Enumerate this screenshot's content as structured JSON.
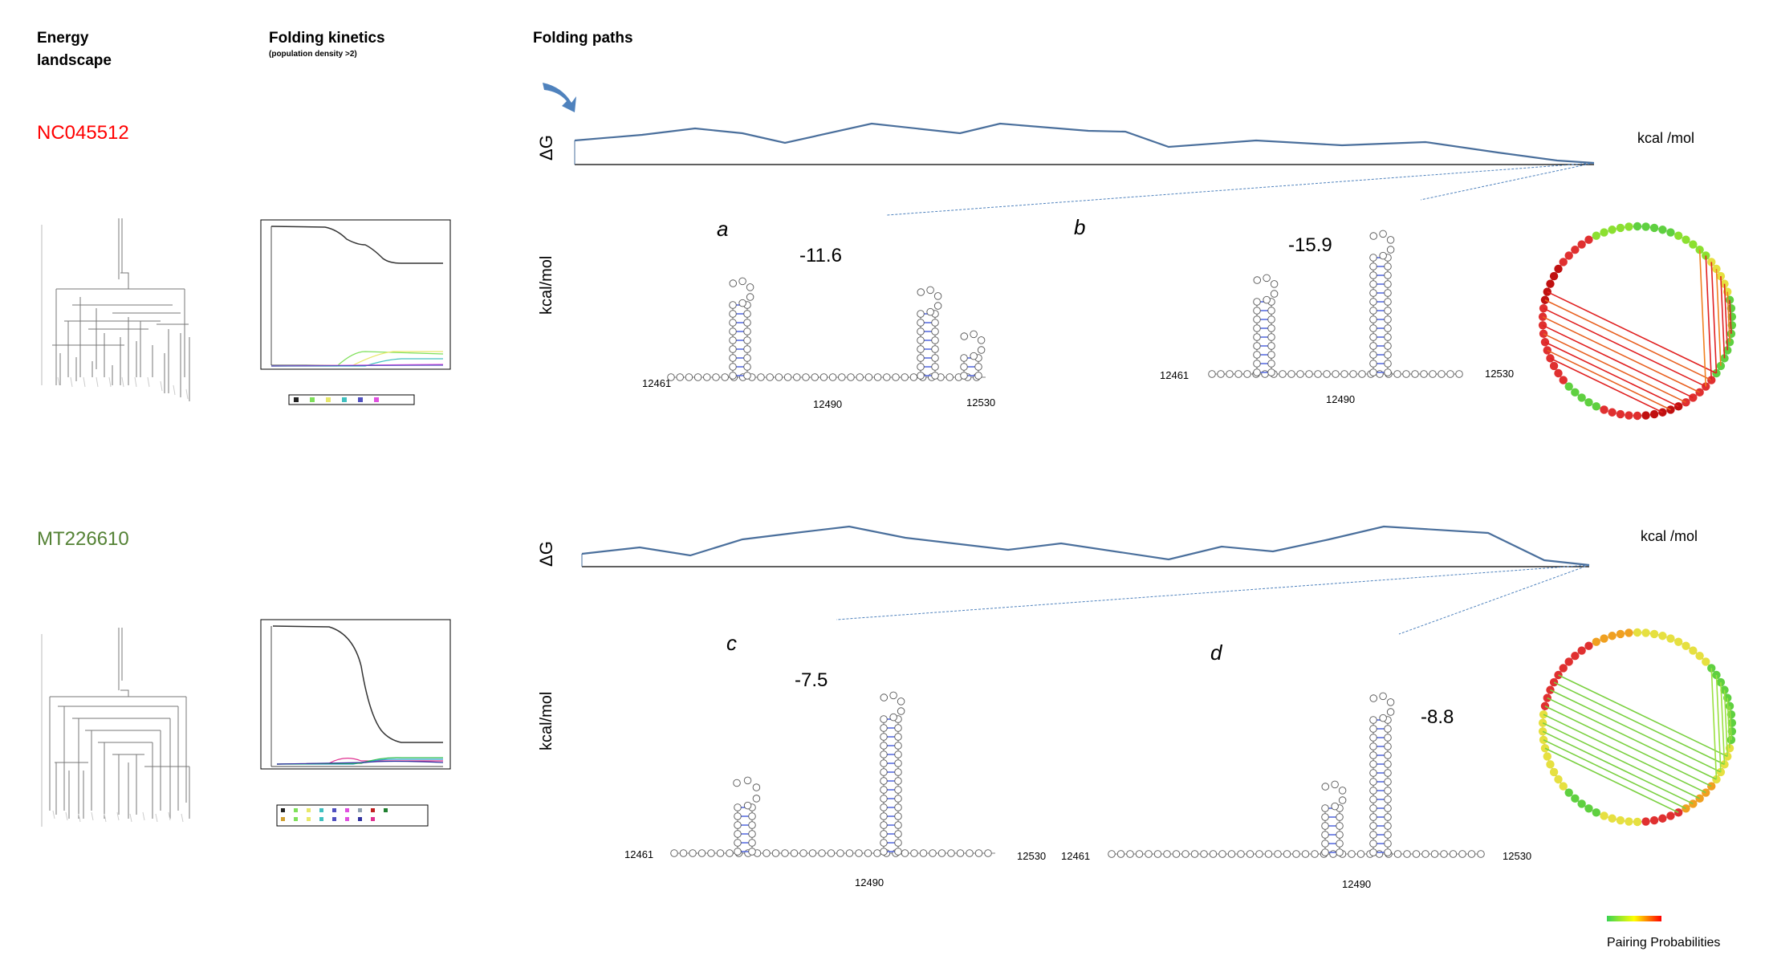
{
  "headers": {
    "energy_landscape": "Energy\nlandscape",
    "folding_kinetics": "Folding kinetics",
    "folding_kinetics_sub": "(population density >2)",
    "folding_paths": "Folding paths"
  },
  "strains": [
    {
      "id": "NC045512",
      "color": "#ff0000",
      "dg_label": "ΔG",
      "dg_unit": "kcal /mol",
      "axis_unit": "kcal/mol",
      "kinetics_legend": "■1 ■2 ■3 ■4 ■5 ■6",
      "panels": [
        {
          "letter": "a",
          "energy": "-11.6",
          "start": "12461",
          "mid": "12490",
          "end": "12530"
        },
        {
          "letter": "b",
          "energy": "-15.9",
          "start": "12461",
          "mid": "12490",
          "end": "12530"
        }
      ]
    },
    {
      "id": "MT226610",
      "color": "#548235",
      "dg_label": "ΔG",
      "dg_unit": "kcal /mol",
      "axis_unit": "kcal/mol",
      "kinetics_legend": "■1 ■4 ■7 ■10 ■13 ■16 ■19 ■22",
      "panels": [
        {
          "letter": "c",
          "energy": "-7.5",
          "start": "12461",
          "mid": "12490",
          "end": "12530"
        },
        {
          "letter": "d",
          "energy": "-8.8",
          "start": "12461",
          "mid": "12490",
          "end": "12530"
        }
      ]
    }
  ],
  "legend": {
    "pairing_label": "Pairing Probabilities",
    "gradient_colors": [
      "#39d353",
      "#ffff00",
      "#ff0000"
    ]
  },
  "colors": {
    "path_line": "#4a6f9c",
    "arrow": "#4f82bd",
    "pair_bond": "#5b6fe0"
  }
}
